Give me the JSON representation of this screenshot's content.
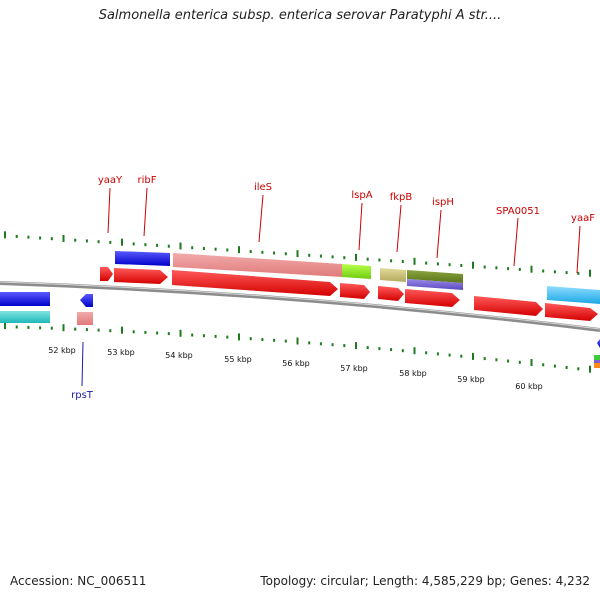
{
  "title": "Salmonella enterica subsp. enterica serovar Paratyphi A str....",
  "footer": {
    "accession": "Accession: NC_006511",
    "summary": "Topology: circular; Length: 4,585,229 bp; Genes: 4,232"
  },
  "colors": {
    "backbone": "#8c8c8c",
    "tick": "#1f7a1f",
    "forward_label": "#cc0000",
    "reverse_label": "#1a1aa6"
  },
  "scale_labels": [
    "52 kbp",
    "53 kbp",
    "54 kbp",
    "55 kbp",
    "56 kbp",
    "57 kbp",
    "58 kbp",
    "59 kbp",
    "60 kbp"
  ],
  "gene_labels": {
    "forward": [
      "yaaY",
      "ribF",
      "ileS",
      "lspA",
      "fkpB",
      "ispH",
      "SPA0051",
      "yaaF"
    ],
    "reverse": [
      "rpsT"
    ]
  }
}
